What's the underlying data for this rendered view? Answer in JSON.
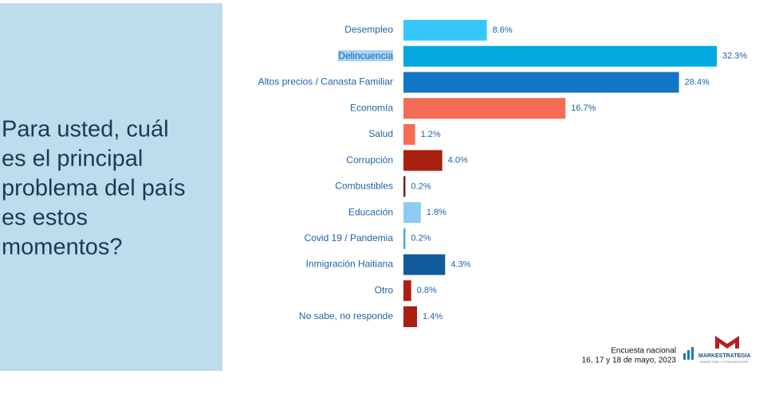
{
  "heading": {
    "lines": [
      "Para usted, cuál",
      "es el principal",
      "problema del país",
      "es estos",
      "momentos?"
    ]
  },
  "chart_data": {
    "type": "bar",
    "orientation": "horizontal",
    "categories": [
      "Desempleo",
      "Delincuencia",
      "Altos precios / Canasta Familiar",
      "Economía",
      "Salud",
      "Corrupción",
      "Combustibles",
      "Educación",
      "Covid 19 / Pandemia",
      "Inmigración Haitiana",
      "Otro",
      "No sabe, no responde"
    ],
    "values": [
      8.6,
      32.3,
      28.4,
      16.7,
      1.2,
      4.0,
      0.2,
      1.8,
      0.2,
      4.3,
      0.8,
      1.4
    ],
    "value_labels": [
      "8.6%",
      "32.3%",
      "28.4%",
      "16.7%",
      "1.2%",
      "4.0%",
      "0.2%",
      "1.8%",
      "0.2%",
      "4.3%",
      "0.8%",
      "1.4%"
    ],
    "colors": [
      "#36c8fb",
      "#05a9e2",
      "#1375c6",
      "#f46c55",
      "#f46c55",
      "#a8200f",
      "#6d1d2a",
      "#8ecbf1",
      "#4aa7e6",
      "#125b9a",
      "#b11f10",
      "#a8200f"
    ]
  },
  "footer": {
    "source": "Encuesta nacional",
    "date": "16, 17 y 18 de mayo, 2023",
    "brand": "MARKESTRATEGIA",
    "tagline": "MARKETING Y COMUNICACIÓN"
  }
}
